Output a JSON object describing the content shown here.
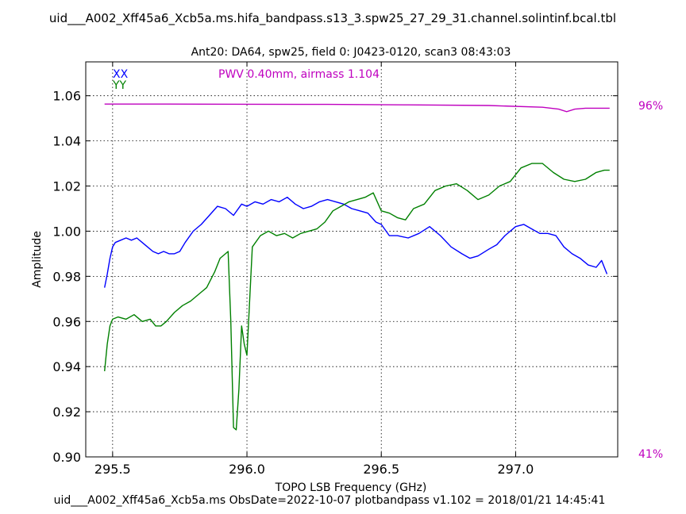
{
  "chart_data": {
    "type": "line",
    "title": "uid___A002_Xff45a6_Xcb5a.ms.hifa_bandpass.s13_3.spw25_27_29_31.channel.solintinf.bcal.tbl",
    "subtitle": "Ant20: DA64,  spw25,  field 0: J0423-0120,  scan3  08:43:03",
    "xlabel": "TOPO LSB Frequency (GHz)",
    "ylabel": "Amplitude",
    "footer": "uid___A002_Xff45a6_Xcb5a.ms  ObsDate=2022-10-07   plotbandpass v1.102 = 2018/01/21 14:45:41",
    "pwv_annotation": "PWV 0.40mm, airmass 1.104",
    "xlim": [
      295.4,
      297.38
    ],
    "ylim": [
      0.9,
      1.075
    ],
    "xticks": [
      295.5,
      296.0,
      296.5,
      297.0
    ],
    "xtick_labels": [
      "295.5",
      "296.0",
      "296.5",
      "297.0"
    ],
    "yticks": [
      0.9,
      0.92,
      0.94,
      0.96,
      0.98,
      1.0,
      1.02,
      1.04,
      1.06
    ],
    "ytick_labels": [
      "0.90",
      "0.92",
      "0.94",
      "0.96",
      "0.98",
      "1.00",
      "1.02",
      "1.04",
      "1.06"
    ],
    "grid": true,
    "legend_placement": "top-left",
    "right_axis": {
      "labels": [
        "96%",
        "41%"
      ],
      "color": "#bf00bf",
      "label_values": [
        96,
        41
      ]
    },
    "transmission": {
      "color": "#bf00bf",
      "x": [
        295.47,
        295.7,
        296.0,
        296.3,
        296.6,
        296.9,
        297.1,
        297.16,
        297.19,
        297.22,
        297.26,
        297.35
      ],
      "y": [
        96.1,
        96.1,
        96.08,
        96.05,
        95.97,
        95.87,
        95.6,
        95.3,
        94.9,
        95.3,
        95.45,
        95.45
      ]
    },
    "series": [
      {
        "name": "XX",
        "color": "#0000ff",
        "x": [
          295.47,
          295.48,
          295.49,
          295.5,
          295.51,
          295.53,
          295.55,
          295.57,
          295.59,
          295.61,
          295.63,
          295.65,
          295.67,
          295.69,
          295.71,
          295.73,
          295.75,
          295.77,
          295.8,
          295.83,
          295.86,
          295.89,
          295.92,
          295.95,
          295.98,
          296.0,
          296.03,
          296.06,
          296.09,
          296.12,
          296.15,
          296.18,
          296.21,
          296.24,
          296.27,
          296.3,
          296.33,
          296.36,
          296.39,
          296.42,
          296.45,
          296.48,
          296.5,
          296.53,
          296.56,
          296.6,
          296.64,
          296.68,
          296.72,
          296.76,
          296.8,
          296.83,
          296.86,
          296.9,
          296.93,
          296.96,
          297.0,
          297.03,
          297.06,
          297.09,
          297.12,
          297.15,
          297.18,
          297.21,
          297.24,
          297.27,
          297.3,
          297.32,
          297.34
        ],
        "y": [
          0.975,
          0.981,
          0.988,
          0.993,
          0.995,
          0.996,
          0.997,
          0.996,
          0.997,
          0.995,
          0.993,
          0.991,
          0.99,
          0.991,
          0.99,
          0.99,
          0.991,
          0.995,
          1.0,
          1.003,
          1.007,
          1.011,
          1.01,
          1.007,
          1.012,
          1.011,
          1.013,
          1.012,
          1.014,
          1.013,
          1.015,
          1.012,
          1.01,
          1.011,
          1.013,
          1.014,
          1.013,
          1.012,
          1.01,
          1.009,
          1.008,
          1.004,
          1.003,
          0.998,
          0.998,
          0.997,
          0.999,
          1.002,
          0.998,
          0.993,
          0.99,
          0.988,
          0.989,
          0.992,
          0.994,
          0.998,
          1.002,
          1.003,
          1.001,
          0.999,
          0.999,
          0.998,
          0.993,
          0.99,
          0.988,
          0.985,
          0.984,
          0.987,
          0.981
        ]
      },
      {
        "name": "YY",
        "color": "#008000",
        "x": [
          295.47,
          295.48,
          295.49,
          295.5,
          295.52,
          295.55,
          295.58,
          295.61,
          295.64,
          295.66,
          295.68,
          295.7,
          295.73,
          295.76,
          295.79,
          295.82,
          295.85,
          295.88,
          295.9,
          295.92,
          295.93,
          295.94,
          295.95,
          295.96,
          295.97,
          295.98,
          295.99,
          296.0,
          296.02,
          296.05,
          296.08,
          296.11,
          296.14,
          296.17,
          296.2,
          296.23,
          296.26,
          296.29,
          296.32,
          296.35,
          296.38,
          296.41,
          296.44,
          296.47,
          296.5,
          296.53,
          296.56,
          296.59,
          296.62,
          296.66,
          296.7,
          296.74,
          296.78,
          296.82,
          296.86,
          296.9,
          296.94,
          296.98,
          297.02,
          297.06,
          297.1,
          297.14,
          297.18,
          297.22,
          297.26,
          297.3,
          297.33,
          297.35
        ],
        "y": [
          0.938,
          0.95,
          0.958,
          0.961,
          0.962,
          0.961,
          0.963,
          0.96,
          0.961,
          0.958,
          0.958,
          0.96,
          0.964,
          0.967,
          0.969,
          0.972,
          0.975,
          0.982,
          0.988,
          0.99,
          0.991,
          0.96,
          0.913,
          0.912,
          0.93,
          0.958,
          0.95,
          0.945,
          0.993,
          0.998,
          1.0,
          0.998,
          0.999,
          0.997,
          0.999,
          1.0,
          1.001,
          1.004,
          1.009,
          1.011,
          1.013,
          1.014,
          1.015,
          1.017,
          1.009,
          1.008,
          1.006,
          1.005,
          1.01,
          1.012,
          1.018,
          1.02,
          1.021,
          1.018,
          1.014,
          1.016,
          1.02,
          1.022,
          1.028,
          1.03,
          1.03,
          1.026,
          1.023,
          1.022,
          1.023,
          1.026,
          1.027,
          1.027
        ]
      }
    ]
  }
}
